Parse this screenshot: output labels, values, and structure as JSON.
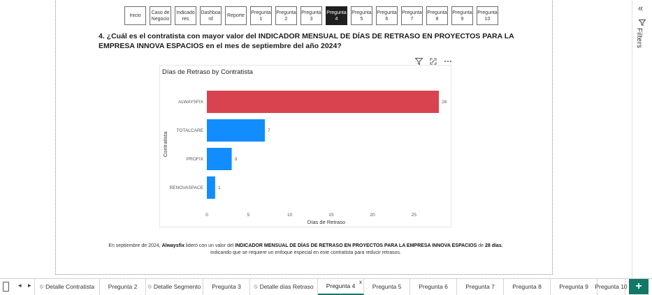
{
  "nav": {
    "buttons": [
      {
        "label": "Inicio",
        "active": false
      },
      {
        "label": "Caso de\nNegocio",
        "active": false
      },
      {
        "label": "Indicado\nres",
        "active": false
      },
      {
        "label": "Dashboa\nrd",
        "active": false
      },
      {
        "label": "Reporte",
        "active": false
      },
      {
        "label": "Pregunta\n1",
        "active": false
      },
      {
        "label": "Pregunta\n2",
        "active": false
      },
      {
        "label": "Pregunta\n3",
        "active": false
      },
      {
        "label": "Pregunta\n4",
        "active": true
      },
      {
        "label": "Pregunta\n5",
        "active": false
      },
      {
        "label": "Pregunta\n6",
        "active": false
      },
      {
        "label": "Pregunta\n7",
        "active": false
      },
      {
        "label": "Pregunta\n8",
        "active": false
      },
      {
        "label": "Pregunta\n9",
        "active": false
      },
      {
        "label": "Pregunta\n10",
        "active": false
      }
    ]
  },
  "question": "4. ¿Cuál es el contratista con mayor valor del INDICADOR MENSUAL DE DÍAS DE RETRASO EN PROYECTOS PARA LA EMPRESA INNOVA ESPACIOS en el mes de septiembre del año 2024?",
  "visual_icons": [
    "filter-icon",
    "focus-mode-icon",
    "more-options-icon"
  ],
  "chart_data": {
    "type": "bar",
    "orientation": "horizontal",
    "title": "Días de Retraso by Contratista",
    "xlabel": "Días de Retraso",
    "ylabel": "Contratista",
    "categories": [
      "ALWAYSFIX",
      "TOTALCARE",
      "PROFIX",
      "RENOVASPACE"
    ],
    "values": [
      28,
      7,
      3,
      1
    ],
    "data_labels": [
      "28",
      "7",
      "3",
      "1"
    ],
    "bar_colors": [
      "#D9434F",
      "#118DFF",
      "#118DFF",
      "#118DFF"
    ],
    "xlim": [
      0,
      28
    ],
    "xticks": [
      "0",
      "5",
      "10",
      "15",
      "20",
      "25"
    ],
    "grid": false
  },
  "summary": {
    "pre": "En septiembre de 2024, ",
    "name": "Alwaysfix",
    "mid": " lideró con un valor del ",
    "indicator": "INDICADOR MENSUAL DE DÍAS DE RETRASO EN PROYECTOS PARA LA EMPRESA INNOVA ESPACIOS",
    "de": " de ",
    "days": "28 días",
    "post": ", indicando que se requiere un enfoque especial en este contratista para reducir retrasos."
  },
  "filters_pane": {
    "label": "Filters",
    "collapse_icon": "double-chevron-left-icon"
  },
  "tabs": [
    {
      "label": "Detalle Contratista",
      "hidden": true,
      "active": false
    },
    {
      "label": "Pregunta 2",
      "hidden": false,
      "active": false
    },
    {
      "label": "Detalle Segmento",
      "hidden": true,
      "active": false
    },
    {
      "label": "Pregunta 3",
      "hidden": false,
      "active": false
    },
    {
      "label": "Detalle días Retraso",
      "hidden": true,
      "active": false
    },
    {
      "label": "Pregunta 4",
      "hidden": false,
      "active": true
    },
    {
      "label": "Pregunta 5",
      "hidden": false,
      "active": false
    },
    {
      "label": "Pregunta 6",
      "hidden": false,
      "active": false
    },
    {
      "label": "Pregunta 7",
      "hidden": false,
      "active": false
    },
    {
      "label": "Pregunta 8",
      "hidden": false,
      "active": false
    },
    {
      "label": "Pregunta 9",
      "hidden": false,
      "active": false
    },
    {
      "label": "Pregunta 10",
      "hidden": false,
      "active": false
    }
  ],
  "tab_close": "x",
  "add_page": "+",
  "colors": {
    "accent": "#117865",
    "highlight_bar": "#D9434F",
    "bar": "#118DFF"
  }
}
